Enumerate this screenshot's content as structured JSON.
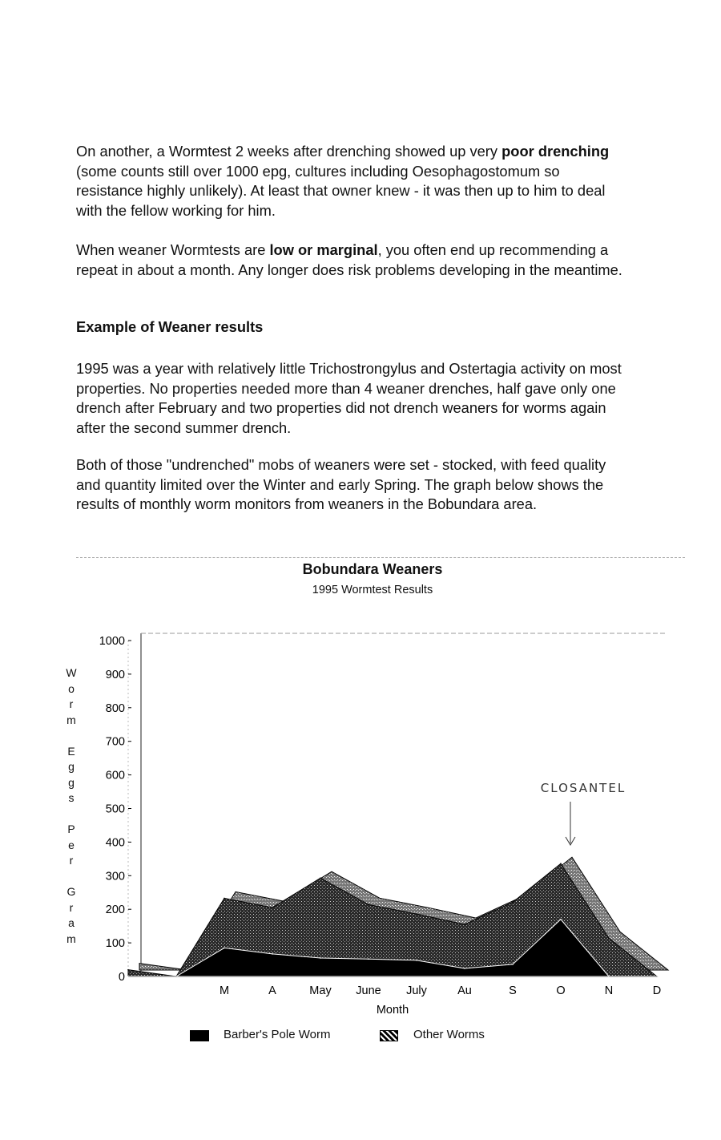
{
  "paragraphs": [
    [
      {
        "t": "On another, a Wormtest 2 weeks after drenching showed up very "
      },
      {
        "t": "poor drenching",
        "b": true
      },
      {
        "t": " (some counts still over 1000 epg, cultures including Oesophagostomum so resistance highly unlikely).  At least that owner knew - it was then up to him to deal with the fellow working for him."
      }
    ],
    [
      {
        "t": "When weaner Wormtests are "
      },
      {
        "t": "low or marginal",
        "b": true
      },
      {
        "t": ", you often end up recommending a repeat in about a month.  Any longer does risk problems developing in the meantime."
      }
    ],
    [
      {
        "t": "1995 was a year with relatively little Trichostrongylus and Ostertagia activity on most properties.  No properties needed more than 4 weaner drenches, half gave only one drench after February and two properties did not drench weaners for worms again after the second summer drench."
      }
    ],
    [
      {
        "t": "Both of those \"undrenched\" mobs of weaners were set - stocked, with feed quality and quantity limited over the Winter and early Spring.  The graph below shows the results of monthly worm monitors from weaners in the Bobundara area."
      }
    ]
  ],
  "heading": "Example of Weaner results",
  "chart_data": {
    "type": "area",
    "stacked": true,
    "title": "Bobundara Weaners",
    "subtitle": "1995 Wormtest Results",
    "xlabel": "Month",
    "ylabel": "Worm Eggs Per Gram",
    "categories": [
      "",
      "",
      "M",
      "A",
      "May",
      "June",
      "July",
      "Au",
      "S",
      "O",
      "N",
      "D"
    ],
    "ylim": [
      0,
      1000
    ],
    "yticks": [
      0,
      100,
      200,
      300,
      400,
      500,
      600,
      700,
      800,
      900,
      1000
    ],
    "series": [
      {
        "name": "Barber's Pole Worm",
        "color": "#000000",
        "values": [
          0,
          0,
          85,
          67,
          55,
          52,
          48,
          24,
          36,
          170,
          0,
          0
        ]
      },
      {
        "name": "Other Worms",
        "color": "#3a3a3a",
        "values": [
          20,
          0,
          148,
          138,
          238,
          162,
          138,
          131,
          185,
          166,
          114,
          0
        ]
      }
    ],
    "annotation": {
      "text": "CLOSANTEL",
      "category": "O"
    },
    "legend": "bottom",
    "grid": false
  }
}
